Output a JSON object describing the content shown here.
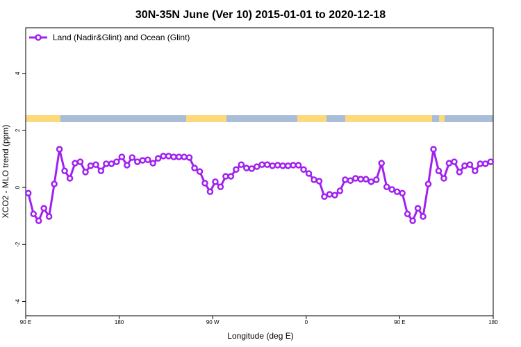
{
  "chart_data": {
    "type": "line",
    "title": "30N-35N June (Ver 10)   2015-01-01 to 2020-12-18",
    "x_label": "Longitude (deg E)",
    "y_label": "XCO2 - MLO trend (ppm)",
    "x": [
      92.5,
      97.5,
      102.5,
      107.5,
      112.5,
      117.5,
      122.5,
      127.5,
      132.5,
      137.5,
      142.5,
      147.5,
      152.5,
      157.5,
      162.5,
      167.5,
      172.5,
      177.5,
      182.5,
      187.5,
      192.5,
      197.5,
      202.5,
      207.5,
      212.5,
      217.5,
      222.5,
      227.5,
      232.5,
      237.5,
      242.5,
      247.5,
      252.5,
      257.5,
      262.5,
      267.5,
      272.5,
      277.5,
      282.5,
      287.5,
      292.5,
      297.5,
      302.5,
      307.5,
      312.5,
      317.5,
      322.5,
      327.5,
      332.5,
      337.5,
      342.5,
      347.5,
      352.5,
      357.5,
      362.5,
      367.5,
      372.5,
      377.5,
      382.5,
      387.5,
      392.5,
      397.5,
      402.5,
      407.5,
      412.5,
      417.5,
      422.5,
      427.5,
      432.5,
      437.5,
      442.5,
      447.5,
      452.5,
      457.5,
      462.5,
      467.5,
      472.5,
      477.5,
      482.5,
      487.5,
      492.5,
      497.5,
      502.5,
      507.5,
      512.5,
      517.5,
      522.5,
      527.5,
      532.5,
      537.5
    ],
    "series": [
      {
        "name": "Land (Nadir&Glint) and Ocean (Glint)",
        "color": "#a020f0",
        "values": [
          -0.2,
          -0.93,
          -1.17,
          -0.73,
          -1.02,
          0.12,
          1.34,
          0.58,
          0.32,
          0.85,
          0.9,
          0.54,
          0.76,
          0.8,
          0.58,
          0.83,
          0.83,
          0.9,
          1.07,
          0.78,
          1.05,
          0.9,
          0.95,
          0.97,
          0.85,
          1.02,
          1.1,
          1.1,
          1.07,
          1.07,
          1.07,
          1.05,
          0.68,
          0.56,
          0.15,
          -0.15,
          0.2,
          0.02,
          0.39,
          0.39,
          0.63,
          0.8,
          0.68,
          0.66,
          0.73,
          0.8,
          0.8,
          0.76,
          0.78,
          0.76,
          0.76,
          0.78,
          0.78,
          0.63,
          0.49,
          0.27,
          0.22,
          -0.32,
          -0.24,
          -0.27,
          -0.12,
          0.27,
          0.24,
          0.32,
          0.29,
          0.29,
          0.2,
          0.27,
          0.85,
          0.02,
          -0.07,
          -0.15,
          -0.2,
          -0.93,
          -1.17,
          -0.73,
          -1.02,
          0.12,
          1.34,
          0.58,
          0.32,
          0.85,
          0.9,
          0.54,
          0.76,
          0.8,
          0.58,
          0.83,
          0.83,
          0.9
        ]
      }
    ],
    "xlim": [
      90,
      540
    ],
    "xticks": [
      {
        "value": 90,
        "label": "90 E"
      },
      180,
      {
        "value": 270,
        "label": "90 W"
      },
      {
        "value": 360,
        "label": "0"
      },
      {
        "value": 450,
        "label": "90 E"
      },
      {
        "value": 540,
        "label": "180"
      }
    ],
    "ylim": [
      -4.5,
      5.6
    ],
    "yticks": [
      -4,
      -2,
      0,
      2,
      4
    ],
    "legend": "top-left"
  }
}
